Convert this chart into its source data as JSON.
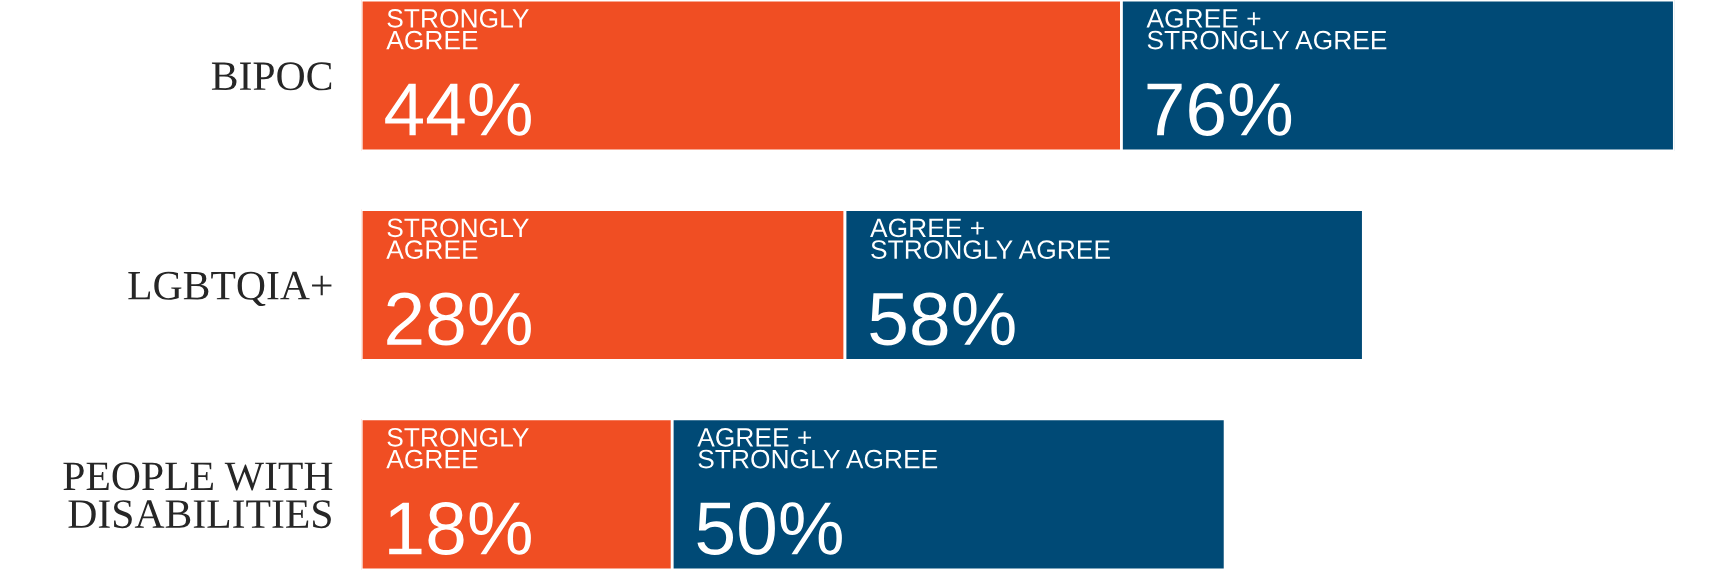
{
  "chart_data": {
    "type": "bar",
    "orientation": "horizontal",
    "stacked": true,
    "categories": [
      "BIPOC",
      "LGBTQIA+",
      "PEOPLE WITH DISABILITIES"
    ],
    "series": [
      {
        "name": "STRONGLY AGREE",
        "color": "#f04e23",
        "values": [
          44,
          28,
          18
        ],
        "value_labels": [
          "44%",
          "28%",
          "18%"
        ]
      },
      {
        "name": "AGREE + STRONGLY AGREE",
        "color": "#004a76",
        "values": [
          32,
          30,
          32
        ]
      }
    ],
    "annotations": [
      "76%",
      "58%",
      "50%"
    ],
    "xlim": [
      0,
      76
    ],
    "tick_labels": "y",
    "legend": false,
    "grid": false
  }
}
